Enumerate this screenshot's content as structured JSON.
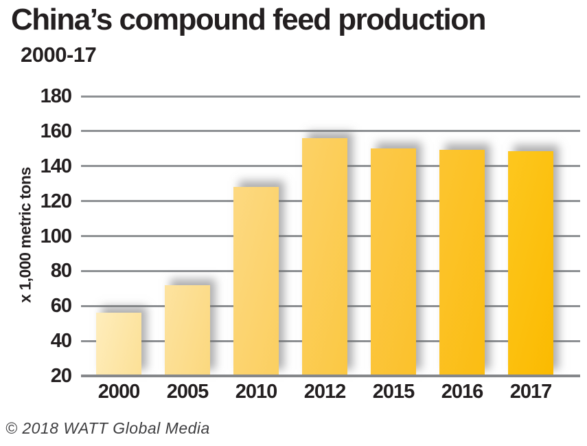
{
  "header": {
    "title": "China’s compound feed production",
    "subtitle": "2000-17"
  },
  "footer": {
    "credit": "© 2018 WATT Global Media"
  },
  "chart_data": {
    "type": "bar",
    "title": "China’s compound feed production",
    "subtitle": "2000-17",
    "categories": [
      "2000",
      "2005",
      "2010",
      "2012",
      "2015",
      "2016",
      "2017"
    ],
    "values": [
      56,
      72,
      128,
      156,
      150,
      149.5,
      148.5
    ],
    "xlabel": "",
    "ylabel": "x 1,000 metric tons",
    "ylim": [
      20,
      180
    ],
    "y_ticks": [
      180,
      160,
      140,
      120,
      100,
      80,
      60,
      40,
      20
    ],
    "grid": true,
    "legend_position": "none",
    "bar_gradients": [
      [
        "#FEEDBC",
        "#FCE096"
      ],
      [
        "#FDE3A0",
        "#FBD87E"
      ],
      [
        "#FDD981",
        "#FBCF60"
      ],
      [
        "#FCD166",
        "#FBC843"
      ],
      [
        "#FCC94A",
        "#FBC12B"
      ],
      [
        "#FCC531",
        "#FBBD12"
      ],
      [
        "#FDC71F",
        "#FBBA00"
      ]
    ],
    "colors": {
      "gridline": "#8d9093",
      "baseline": "#85878a",
      "text": "#231f20",
      "footer_text": "#3e3e40",
      "background": "#ffffff"
    }
  }
}
